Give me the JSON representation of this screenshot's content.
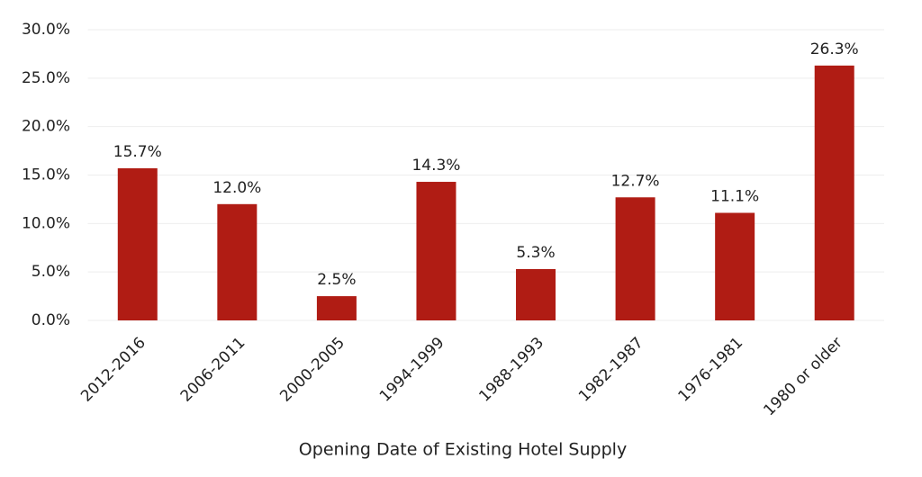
{
  "chart_data": {
    "type": "bar",
    "x_label": "Opening Date of Existing Hotel Supply",
    "categories": [
      "2012-2016",
      "2006-2011",
      "2000-2005",
      "1994-1999",
      "1988-1993",
      "1982-1987",
      "1976-1981",
      "1980 or older"
    ],
    "values": [
      15.7,
      12.0,
      2.5,
      14.3,
      5.3,
      12.7,
      11.1,
      26.3
    ],
    "value_labels": [
      "15.7%",
      "12.0%",
      "2.5%",
      "14.3%",
      "5.3%",
      "12.7%",
      "11.1%",
      "26.3%"
    ],
    "color": "#b01c14",
    "ylim": [
      0,
      30
    ],
    "yticks": [
      {
        "value": 0,
        "label": "0.0%"
      },
      {
        "value": 5,
        "label": "5.0%"
      },
      {
        "value": 10,
        "label": "10.0%"
      },
      {
        "value": 15,
        "label": "15.0%"
      },
      {
        "value": 20,
        "label": "20.0%"
      },
      {
        "value": 25,
        "label": "25.0%"
      },
      {
        "value": 30,
        "label": "30.0%"
      }
    ],
    "grid": true
  }
}
